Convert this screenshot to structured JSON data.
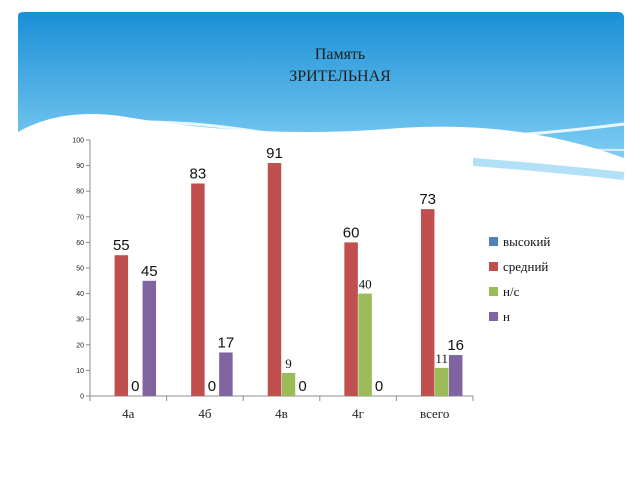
{
  "title": {
    "line1": "Память",
    "line2": "ЗРИТЕЛЬНАЯ"
  },
  "colors": {
    "banner_top": "#1a8fd6",
    "banner_bottom": "#7fcdf3",
    "series": [
      "#4f81bd",
      "#c0504d",
      "#9bbb59",
      "#8064a2"
    ]
  },
  "chart_data": {
    "type": "bar",
    "title": "",
    "xlabel": "",
    "ylabel": "",
    "categories": [
      "4а",
      "4б",
      "4в",
      "4г",
      "всего"
    ],
    "ylim": [
      0,
      100
    ],
    "yticks": [
      0,
      10,
      20,
      30,
      40,
      50,
      60,
      70,
      80,
      90,
      100
    ],
    "grid": false,
    "legend_position": "right",
    "series": [
      {
        "name": "высокий",
        "values": [
          null,
          null,
          null,
          null,
          null
        ]
      },
      {
        "name": "средний",
        "values": [
          55,
          83,
          91,
          60,
          73
        ]
      },
      {
        "name": "н/с",
        "values": [
          0,
          0,
          9,
          40,
          11
        ]
      },
      {
        "name": "н",
        "values": [
          45,
          17,
          0,
          0,
          16
        ]
      }
    ],
    "data_labels": [
      {
        "text": "55",
        "series": 1,
        "category": 0,
        "font": "sans"
      },
      {
        "text": "45",
        "series": 3,
        "category": 0,
        "font": "sans"
      },
      {
        "text": "0",
        "series": 2,
        "category": 0,
        "font": "sans"
      },
      {
        "text": "83",
        "series": 1,
        "category": 1,
        "font": "sans"
      },
      {
        "text": "17",
        "series": 3,
        "category": 1,
        "font": "sans"
      },
      {
        "text": "0",
        "series": 2,
        "category": 1,
        "font": "sans"
      },
      {
        "text": "91",
        "series": 1,
        "category": 2,
        "font": "sans"
      },
      {
        "text": "9",
        "series": 2,
        "category": 2,
        "font": "serif"
      },
      {
        "text": "0",
        "series": 3,
        "category": 2,
        "font": "sans"
      },
      {
        "text": "60",
        "series": 1,
        "category": 3,
        "font": "sans"
      },
      {
        "text": "40",
        "series": 2,
        "category": 3,
        "font": "serif"
      },
      {
        "text": "0",
        "series": 3,
        "category": 3,
        "font": "sans"
      },
      {
        "text": "73",
        "series": 1,
        "category": 4,
        "font": "sans"
      },
      {
        "text": "11",
        "series": 2,
        "category": 4,
        "font": "serif"
      },
      {
        "text": "16",
        "series": 3,
        "category": 4,
        "font": "sans"
      }
    ]
  }
}
